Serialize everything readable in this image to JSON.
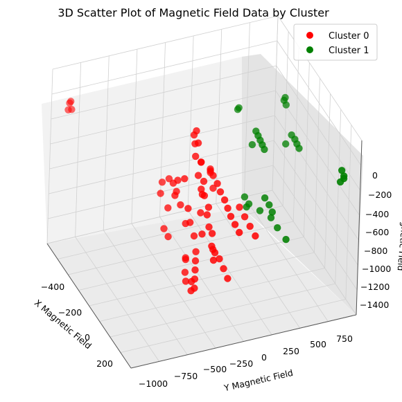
{
  "chart_data": {
    "type": "scatter",
    "title": "3D Scatter Plot of Magnetic Field Data by Cluster",
    "xlabel": "X Magnetic Field",
    "ylabel": "Y Magnetic Field",
    "zlabel": "Z Magnetic Field",
    "x_ticks": [
      "−400",
      "−200",
      "0",
      "200"
    ],
    "y_ticks": [
      "−1000",
      "−750",
      "−500",
      "−250",
      "0",
      "250",
      "500",
      "750"
    ],
    "z_ticks": [
      "0",
      "−200",
      "−400",
      "−600",
      "−800",
      "−1000",
      "−1200",
      "−1400"
    ],
    "xlim": [
      -500,
      300
    ],
    "ylim": [
      -1100,
      850
    ],
    "zlim": [
      -1500,
      100
    ],
    "legend_position": "top-right",
    "grid": true,
    "series": [
      {
        "name": "Cluster 0",
        "color": "#ff0000",
        "points": [
          [
            -430,
            -1000,
            -120
          ],
          [
            -440,
            -1000,
            -150
          ],
          [
            -420,
            -1000,
            -180
          ],
          [
            -440,
            -1010,
            -210
          ],
          [
            -60,
            -250,
            -50
          ],
          [
            -70,
            -260,
            -100
          ],
          [
            -50,
            -240,
            -150
          ],
          [
            -80,
            -240,
            -200
          ],
          [
            -40,
            -270,
            -250
          ],
          [
            -30,
            -230,
            -300
          ],
          [
            -60,
            -200,
            -350
          ],
          [
            -20,
            -260,
            -400
          ],
          [
            -10,
            -220,
            -450
          ],
          [
            0,
            -250,
            -500
          ],
          [
            10,
            -230,
            -550
          ],
          [
            -30,
            -210,
            -600
          ],
          [
            20,
            -200,
            -650
          ],
          [
            30,
            -220,
            -700
          ],
          [
            -20,
            -230,
            -750
          ],
          [
            40,
            -210,
            -800
          ],
          [
            50,
            -190,
            -850
          ],
          [
            10,
            -240,
            -900
          ],
          [
            60,
            -200,
            -950
          ],
          [
            70,
            -180,
            -1000
          ],
          [
            80,
            -200,
            -1050
          ],
          [
            -50,
            -350,
            -450
          ],
          [
            -80,
            -380,
            -500
          ],
          [
            -100,
            -400,
            -550
          ],
          [
            -60,
            -420,
            -600
          ],
          [
            -110,
            -360,
            -650
          ],
          [
            -30,
            -330,
            -700
          ],
          [
            -90,
            -340,
            -750
          ],
          [
            -120,
            -420,
            -800
          ],
          [
            -40,
            -300,
            -850
          ],
          [
            -70,
            -310,
            -900
          ],
          [
            -20,
            -280,
            -950
          ],
          [
            0,
            -150,
            -400
          ],
          [
            20,
            -130,
            -450
          ],
          [
            40,
            -120,
            -500
          ],
          [
            60,
            -100,
            -550
          ],
          [
            80,
            -90,
            -600
          ],
          [
            100,
            -80,
            -650
          ],
          [
            120,
            -60,
            -700
          ],
          [
            140,
            -40,
            -750
          ],
          [
            -100,
            -80,
            -500
          ],
          [
            -120,
            -60,
            -550
          ],
          [
            -140,
            -40,
            -600
          ],
          [
            -80,
            -70,
            -650
          ],
          [
            30,
            60,
            -700
          ],
          [
            60,
            80,
            -750
          ],
          [
            90,
            100,
            -800
          ],
          [
            120,
            120,
            -850
          ],
          [
            -20,
            -260,
            -1100
          ],
          [
            0,
            -280,
            -1150
          ],
          [
            20,
            -300,
            -1200
          ],
          [
            40,
            -320,
            -1250
          ],
          [
            60,
            -340,
            -1300
          ],
          [
            -10,
            -300,
            -1350
          ],
          [
            10,
            -320,
            -1400
          ],
          [
            -160,
            -380,
            -600
          ],
          [
            -180,
            -420,
            -650
          ],
          [
            -150,
            -460,
            -700
          ],
          [
            -130,
            -440,
            -1000
          ],
          [
            -110,
            -420,
            -1050
          ],
          [
            20,
            -150,
            -1050
          ],
          [
            50,
            -120,
            -1100
          ],
          [
            80,
            -110,
            -1150
          ],
          [
            110,
            -100,
            -1200
          ],
          [
            -60,
            -310,
            -1200
          ],
          [
            -40,
            -330,
            -1300
          ],
          [
            -80,
            -290,
            -1250
          ],
          [
            -20,
            -340,
            -1350
          ]
        ]
      },
      {
        "name": "Cluster 1",
        "color": "#008000",
        "points": [
          [
            -150,
            200,
            -80
          ],
          [
            -160,
            200,
            -110
          ],
          [
            -40,
            250,
            -150
          ],
          [
            -30,
            260,
            -180
          ],
          [
            -20,
            270,
            -210
          ],
          [
            -10,
            280,
            -240
          ],
          [
            0,
            290,
            -270
          ],
          [
            -60,
            240,
            -300
          ],
          [
            -170,
            620,
            -120
          ],
          [
            -180,
            620,
            -160
          ],
          [
            -170,
            630,
            -190
          ],
          [
            -80,
            600,
            -330
          ],
          [
            -70,
            620,
            -360
          ],
          [
            -60,
            630,
            -390
          ],
          [
            -50,
            640,
            -420
          ],
          [
            -110,
            580,
            -450
          ],
          [
            60,
            250,
            -620
          ],
          [
            80,
            270,
            -660
          ],
          [
            100,
            280,
            -700
          ],
          [
            40,
            230,
            -760
          ],
          [
            70,
            300,
            -800
          ],
          [
            110,
            320,
            -840
          ],
          [
            -20,
            150,
            -700
          ],
          [
            0,
            170,
            -740
          ],
          [
            -10,
            160,
            -780
          ],
          [
            150,
            360,
            -900
          ],
          [
            200,
            780,
            -300
          ],
          [
            210,
            790,
            -340
          ],
          [
            200,
            800,
            -380
          ],
          [
            190,
            780,
            -420
          ]
        ]
      }
    ]
  }
}
